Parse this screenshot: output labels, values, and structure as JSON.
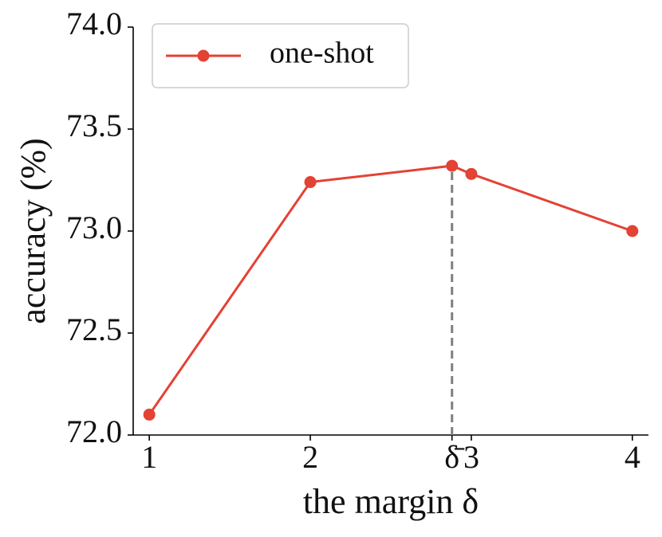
{
  "chart_data": {
    "type": "line",
    "xlabel": "the margin δ",
    "ylabel": "accuracy (%)",
    "x": [
      1,
      2,
      2.88,
      3,
      4
    ],
    "series": [
      {
        "name": "one-shot",
        "color": "#e34234",
        "values": [
          72.1,
          73.24,
          73.32,
          73.28,
          73.0
        ]
      }
    ],
    "xlim": [
      0.9,
      4.1
    ],
    "ylim": [
      72.0,
      74.0
    ],
    "xticks": [
      1,
      2,
      {
        "value": 2.88,
        "label": "δ̄"
      },
      3,
      4
    ],
    "yticks": [
      {
        "value": 72.0,
        "label": "72.0"
      },
      {
        "value": 72.5,
        "label": "72.5"
      },
      {
        "value": 73.0,
        "label": "73.0"
      },
      {
        "value": 73.5,
        "label": "73.5"
      },
      {
        "value": 74.0,
        "label": "74.0"
      }
    ],
    "reference_line": {
      "x": 2.88,
      "ymax": 73.32,
      "color": "#808080"
    },
    "legend": "upper left",
    "grid": false
  }
}
